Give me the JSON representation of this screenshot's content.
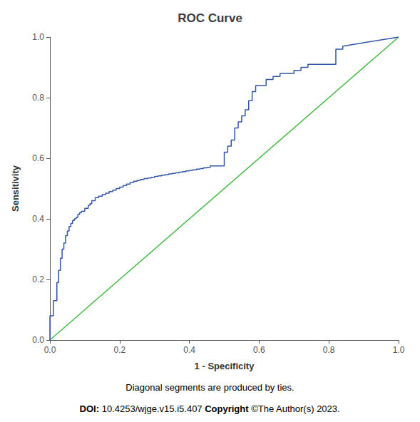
{
  "chart_data": {
    "type": "line",
    "title": "ROC Curve",
    "xlabel": "1 - Specificity",
    "ylabel": "Sensitivity",
    "xlim": [
      0.0,
      1.0
    ],
    "ylim": [
      0.0,
      1.0
    ],
    "xticks": [
      {
        "value": 0.0,
        "label": "0.0"
      },
      0.2,
      0.4,
      0.6,
      0.8,
      {
        "value": 1.0,
        "label": "1.0"
      }
    ],
    "yticks": [
      {
        "value": 0.0,
        "label": "0.0"
      },
      0.2,
      0.4,
      0.6,
      0.8,
      {
        "value": 1.0,
        "label": "1.0"
      }
    ],
    "grid": false,
    "annotations": [
      "Diagonal segments are produced by ties.",
      "DOI:",
      "10.4253/wjge.v15.i5.407",
      "Copyright",
      "©The Author(s) 2023."
    ],
    "series": [
      {
        "color": "#44bb44",
        "x": [
          0.0,
          1.0
        ],
        "values": [
          0.0,
          1.0
        ]
      },
      {
        "color": "#3355aa",
        "x": [
          0.0,
          0.0,
          0.01,
          0.01,
          0.02,
          0.02,
          0.025,
          0.025,
          0.03,
          0.03,
          0.035,
          0.035,
          0.04,
          0.04,
          0.045,
          0.045,
          0.05,
          0.05,
          0.055,
          0.055,
          0.06,
          0.06,
          0.065,
          0.065,
          0.07,
          0.07,
          0.075,
          0.075,
          0.08,
          0.08,
          0.085,
          0.085,
          0.09,
          0.09,
          0.095,
          0.1,
          0.1,
          0.11,
          0.11,
          0.115,
          0.115,
          0.12,
          0.12,
          0.13,
          0.13,
          0.14,
          0.14,
          0.15,
          0.15,
          0.16,
          0.16,
          0.17,
          0.17,
          0.18,
          0.18,
          0.19,
          0.19,
          0.2,
          0.2,
          0.21,
          0.21,
          0.22,
          0.22,
          0.23,
          0.23,
          0.24,
          0.24,
          0.25,
          0.25,
          0.26,
          0.26,
          0.27,
          0.27,
          0.28,
          0.28,
          0.29,
          0.29,
          0.3,
          0.3,
          0.31,
          0.31,
          0.32,
          0.32,
          0.33,
          0.33,
          0.34,
          0.34,
          0.35,
          0.35,
          0.36,
          0.36,
          0.37,
          0.37,
          0.38,
          0.38,
          0.39,
          0.39,
          0.4,
          0.4,
          0.41,
          0.41,
          0.42,
          0.42,
          0.43,
          0.43,
          0.44,
          0.44,
          0.45,
          0.45,
          0.46,
          0.46,
          0.5,
          0.5,
          0.51,
          0.51,
          0.52,
          0.52,
          0.53,
          0.53,
          0.54,
          0.54,
          0.55,
          0.55,
          0.56,
          0.56,
          0.57,
          0.57,
          0.58,
          0.58,
          0.59,
          0.59,
          0.6,
          0.62,
          0.62,
          0.64,
          0.64,
          0.66,
          0.66,
          0.7,
          0.7,
          0.72,
          0.72,
          0.74,
          0.74,
          0.82,
          0.82,
          0.84,
          0.84,
          1.0
        ],
        "values": [
          0.0,
          0.08,
          0.08,
          0.13,
          0.13,
          0.19,
          0.19,
          0.23,
          0.23,
          0.27,
          0.27,
          0.3,
          0.3,
          0.32,
          0.32,
          0.345,
          0.345,
          0.36,
          0.36,
          0.375,
          0.375,
          0.385,
          0.385,
          0.395,
          0.395,
          0.4,
          0.4,
          0.405,
          0.405,
          0.415,
          0.415,
          0.42,
          0.42,
          0.425,
          0.425,
          0.425,
          0.435,
          0.435,
          0.445,
          0.445,
          0.45,
          0.45,
          0.46,
          0.46,
          0.47,
          0.47,
          0.475,
          0.475,
          0.48,
          0.48,
          0.485,
          0.485,
          0.49,
          0.49,
          0.495,
          0.495,
          0.5,
          0.5,
          0.505,
          0.505,
          0.51,
          0.51,
          0.515,
          0.515,
          0.52,
          0.52,
          0.524,
          0.524,
          0.527,
          0.527,
          0.53,
          0.53,
          0.533,
          0.533,
          0.535,
          0.535,
          0.537,
          0.537,
          0.54,
          0.54,
          0.542,
          0.542,
          0.544,
          0.544,
          0.546,
          0.546,
          0.548,
          0.548,
          0.55,
          0.55,
          0.552,
          0.552,
          0.554,
          0.554,
          0.556,
          0.556,
          0.558,
          0.558,
          0.56,
          0.56,
          0.562,
          0.562,
          0.564,
          0.564,
          0.566,
          0.566,
          0.568,
          0.568,
          0.57,
          0.57,
          0.575,
          0.575,
          0.62,
          0.62,
          0.64,
          0.64,
          0.66,
          0.66,
          0.7,
          0.7,
          0.72,
          0.72,
          0.74,
          0.74,
          0.76,
          0.76,
          0.79,
          0.79,
          0.82,
          0.82,
          0.84,
          0.84,
          0.84,
          0.86,
          0.86,
          0.87,
          0.87,
          0.88,
          0.88,
          0.89,
          0.89,
          0.9,
          0.9,
          0.91,
          0.91,
          0.96,
          0.96,
          0.97,
          1.0
        ]
      }
    ]
  }
}
